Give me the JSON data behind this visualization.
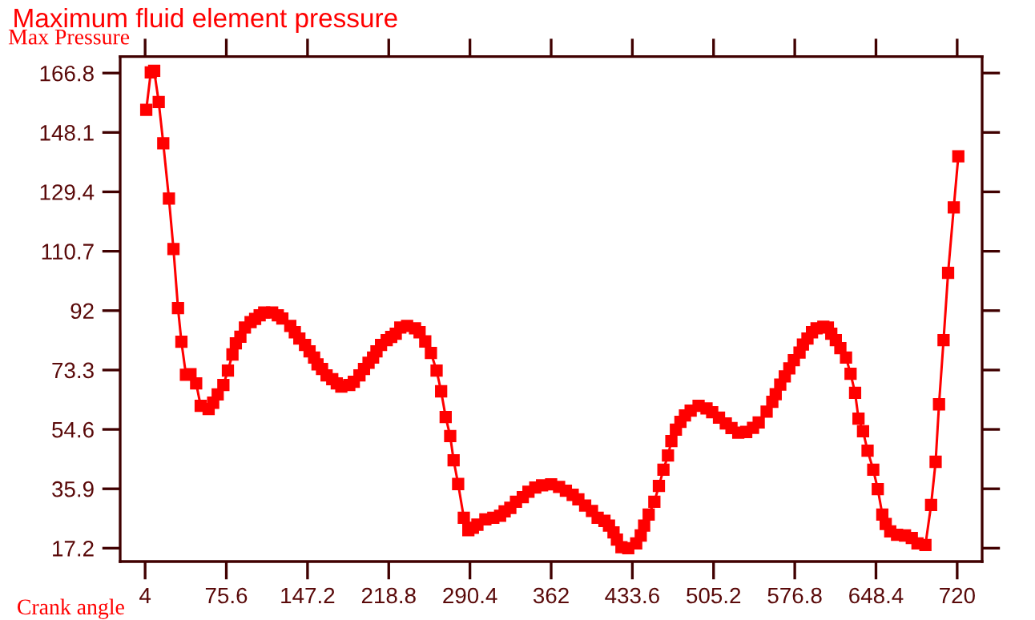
{
  "chart_data": {
    "type": "line",
    "title": "Maximum fluid element pressure",
    "xlabel": "Crank angle",
    "ylabel": "Max Pressure",
    "x": [
      5,
      9,
      12,
      16,
      20,
      25,
      29,
      33,
      36,
      40,
      44,
      49,
      53,
      60,
      64,
      68,
      73,
      77,
      81,
      84,
      88,
      92,
      97,
      101,
      105,
      109,
      116,
      121,
      125,
      132,
      136,
      140,
      145,
      149,
      153,
      156,
      160,
      164,
      169,
      173,
      177,
      184,
      188,
      193,
      197,
      201,
      205,
      208,
      212,
      217,
      221,
      225,
      229,
      235,
      242,
      246,
      251,
      256,
      261,
      265,
      269,
      273,
      276,
      280,
      285,
      289,
      293,
      297,
      304,
      311,
      317,
      321,
      326,
      331,
      337,
      342,
      348,
      354,
      362,
      369,
      375,
      381,
      386,
      392,
      398,
      403,
      409,
      413,
      417,
      420,
      424,
      430,
      437,
      441,
      444,
      448,
      453,
      457,
      461,
      465,
      468,
      472,
      476,
      480,
      485,
      492,
      499,
      504,
      510,
      516,
      521,
      527,
      534,
      540,
      545,
      552,
      557,
      560,
      564,
      568,
      572,
      576,
      581,
      584,
      588,
      592,
      596,
      602,
      606,
      609,
      613,
      617,
      622,
      626,
      630,
      633,
      637,
      641,
      646,
      650,
      654,
      657,
      661,
      667,
      674,
      680,
      685,
      692,
      697,
      701,
      704,
      708,
      712,
      717,
      721
    ],
    "series": [
      {
        "color": "#ff0000",
        "values": [
          155.2,
          167.0,
          167.5,
          157.7,
          144.7,
          127.3,
          111.4,
          92.8,
          82.2,
          71.8,
          72.0,
          69.1,
          62.0,
          61.0,
          63.0,
          65.6,
          68.6,
          73.1,
          78.2,
          81.7,
          83.8,
          86.7,
          88.4,
          89.4,
          90.5,
          91.4,
          91.4,
          90.5,
          89.5,
          87.2,
          85.2,
          83.2,
          81.2,
          79.2,
          77.2,
          75.1,
          73.6,
          71.6,
          70.4,
          69.1,
          68.1,
          68.6,
          69.6,
          71.6,
          73.6,
          75.6,
          77.2,
          79.2,
          81.2,
          82.7,
          83.7,
          84.7,
          86.7,
          87.2,
          86.4,
          85.2,
          82.3,
          78.7,
          73.1,
          66.6,
          58.5,
          52.5,
          44.9,
          37.4,
          26.8,
          22.9,
          23.6,
          24.6,
          26.3,
          26.8,
          27.4,
          28.8,
          29.9,
          31.8,
          33.3,
          35.0,
          36.3,
          37.0,
          37.3,
          36.5,
          35.3,
          34.0,
          32.6,
          30.6,
          28.9,
          26.8,
          25.8,
          24.3,
          22.2,
          19.9,
          17.5,
          17.2,
          18.7,
          21.2,
          24.3,
          27.8,
          31.8,
          36.8,
          41.9,
          46.4,
          50.9,
          54.5,
          57.0,
          59.0,
          60.5,
          62.0,
          61.2,
          60.0,
          58.3,
          56.5,
          55.0,
          53.6,
          53.8,
          55.1,
          56.8,
          60.2,
          63.3,
          65.7,
          68.7,
          71.3,
          73.8,
          76.4,
          78.8,
          81.3,
          83.2,
          85.2,
          86.4,
          86.9,
          86.7,
          84.7,
          82.7,
          80.2,
          77.2,
          72.1,
          66.1,
          58.0,
          54.0,
          47.9,
          41.9,
          35.8,
          27.8,
          24.8,
          22.5,
          21.4,
          21.2,
          20.4,
          18.7,
          18.2,
          30.8,
          44.4,
          62.5,
          82.7,
          103.9,
          124.5,
          140.6
        ]
      }
    ],
    "xlim": [
      -18,
      742
    ],
    "ylim": [
      13,
      172
    ],
    "xticks": [
      4,
      75.6,
      147.2,
      218.8,
      290.4,
      362,
      433.6,
      505.2,
      576.8,
      648.4,
      720
    ],
    "yticks": [
      17.2,
      35.9,
      54.6,
      73.3,
      92,
      110.7,
      129.4,
      148.1,
      166.8
    ],
    "marker": "square",
    "line_style": "solid",
    "grid": false,
    "legend": false
  }
}
